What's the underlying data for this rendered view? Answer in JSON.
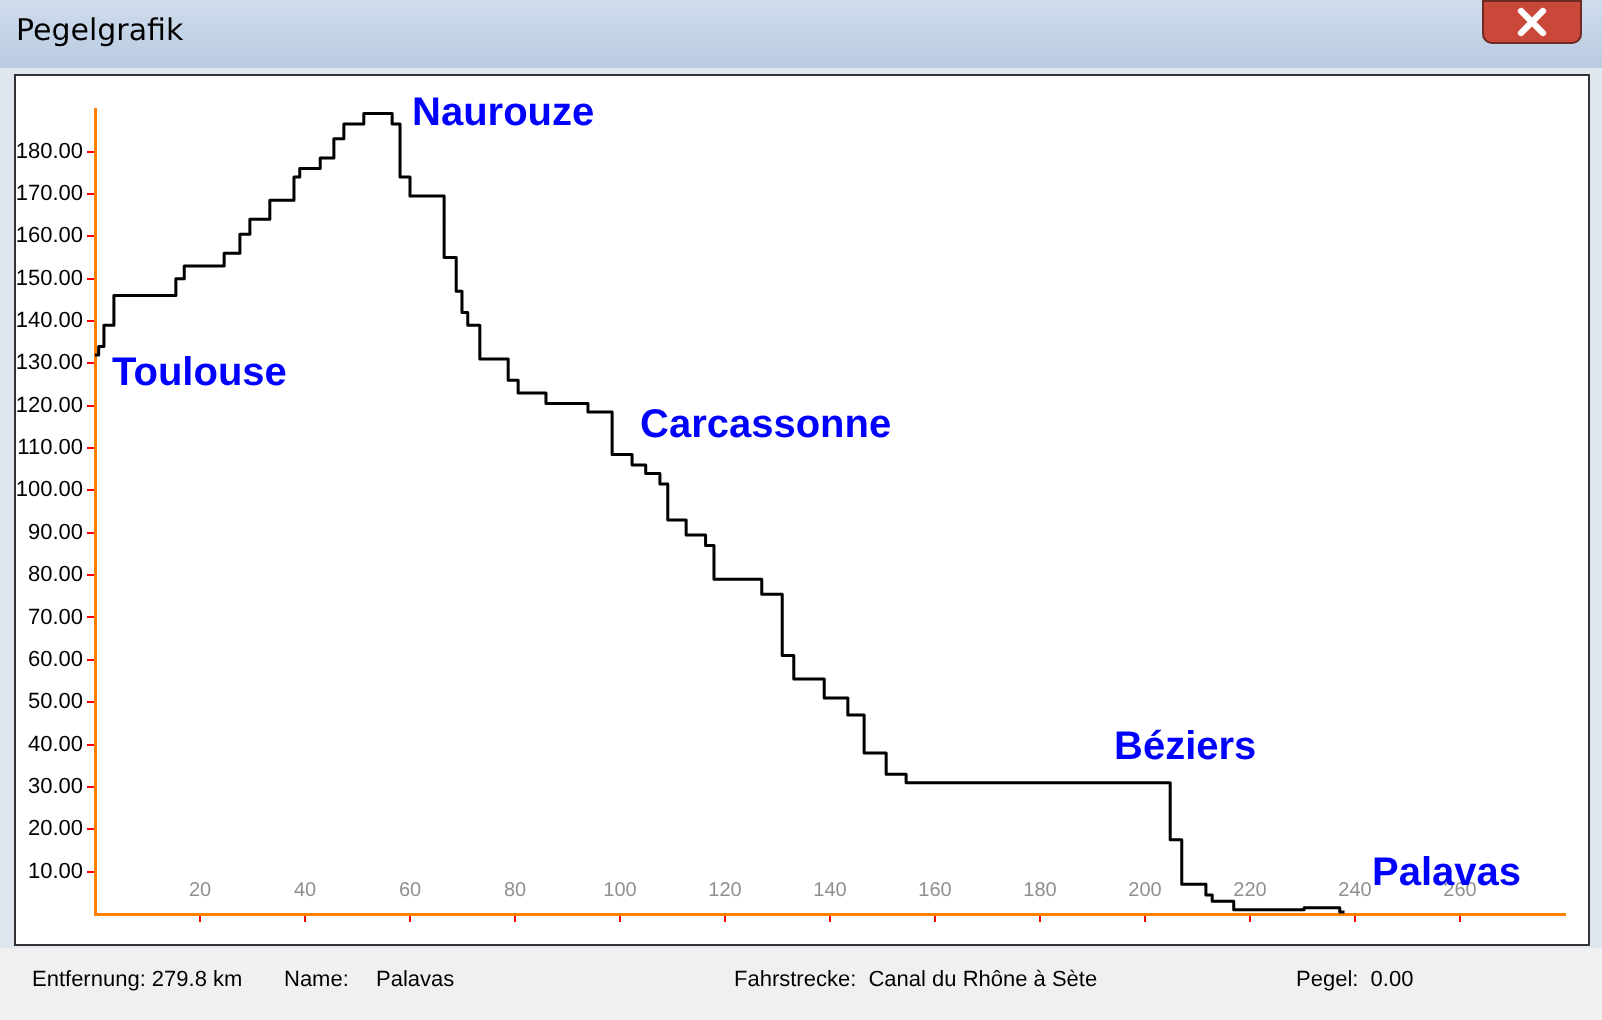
{
  "chart_data": {
    "type": "step",
    "title": "Pegelgrafik",
    "x": [
      0,
      0.7,
      1.7,
      3.6,
      15.4,
      17,
      24.6,
      27.6,
      29.5,
      33.3,
      37.9,
      39,
      42.9,
      45.5,
      47.4,
      51.2,
      56.6,
      58.1,
      60,
      66.5,
      68.8,
      69.9,
      71,
      73.3,
      78.7,
      80.6,
      85.9,
      93.9,
      98.5,
      102.3,
      104.9,
      107.6,
      109.1,
      112.6,
      116.3,
      117.9,
      127,
      130.9,
      133.1,
      138.9,
      143.4,
      146.5,
      150.7,
      154.5,
      204.8,
      207,
      211.6,
      212.8,
      216.9,
      230.3,
      237.1,
      238
    ],
    "series": [
      {
        "color": "#000000",
        "values": [
          132,
          134,
          139,
          146,
          150,
          153,
          156,
          160.5,
          164,
          168.5,
          174,
          176,
          178.5,
          183,
          186.5,
          189,
          186.5,
          174,
          169.5,
          155,
          147,
          142,
          139,
          131,
          126,
          123,
          120.5,
          118.5,
          108.5,
          106,
          104,
          101.5,
          93,
          89.5,
          87,
          79,
          75.5,
          61,
          55.5,
          51,
          47,
          38,
          33,
          31,
          17.5,
          7,
          4.5,
          3,
          1,
          1.5,
          0.5,
          0.5
        ]
      }
    ],
    "xlim": [
      0,
      280
    ],
    "xticks": [
      20,
      40,
      60,
      80,
      100,
      120,
      140,
      160,
      180,
      200,
      220,
      240,
      260
    ],
    "ylim": [
      0,
      190
    ],
    "yticks": [
      {
        "value": 10,
        "label": "10.00"
      },
      {
        "value": 20,
        "label": "20.00"
      },
      {
        "value": 30,
        "label": "30.00"
      },
      {
        "value": 40,
        "label": "40.00"
      },
      {
        "value": 50,
        "label": "50.00"
      },
      {
        "value": 60,
        "label": "60.00"
      },
      {
        "value": 70,
        "label": "70.00"
      },
      {
        "value": 80,
        "label": "80.00"
      },
      {
        "value": 90,
        "label": "90.00"
      },
      {
        "value": 100,
        "label": "100.00"
      },
      {
        "value": 110,
        "label": "110.00"
      },
      {
        "value": 120,
        "label": "120.00"
      },
      {
        "value": 130,
        "label": "130.00"
      },
      {
        "value": 140,
        "label": "140.00"
      },
      {
        "value": 150,
        "label": "150.00"
      },
      {
        "value": 160,
        "label": "160.00"
      },
      {
        "value": 170,
        "label": "170.00"
      },
      {
        "value": 180,
        "label": "180.00"
      }
    ],
    "grid": false,
    "legend": false,
    "marker": "none",
    "annotations": [
      "Toulouse",
      "Naurouze",
      "Carcassonne",
      "Béziers",
      "Palavas",
      "Entfernung: 279.8 km",
      "Name:",
      "Palavas",
      "Fahrstrecke:  Canal du Rhône à Sète",
      "Pegel:  0.00"
    ]
  }
}
